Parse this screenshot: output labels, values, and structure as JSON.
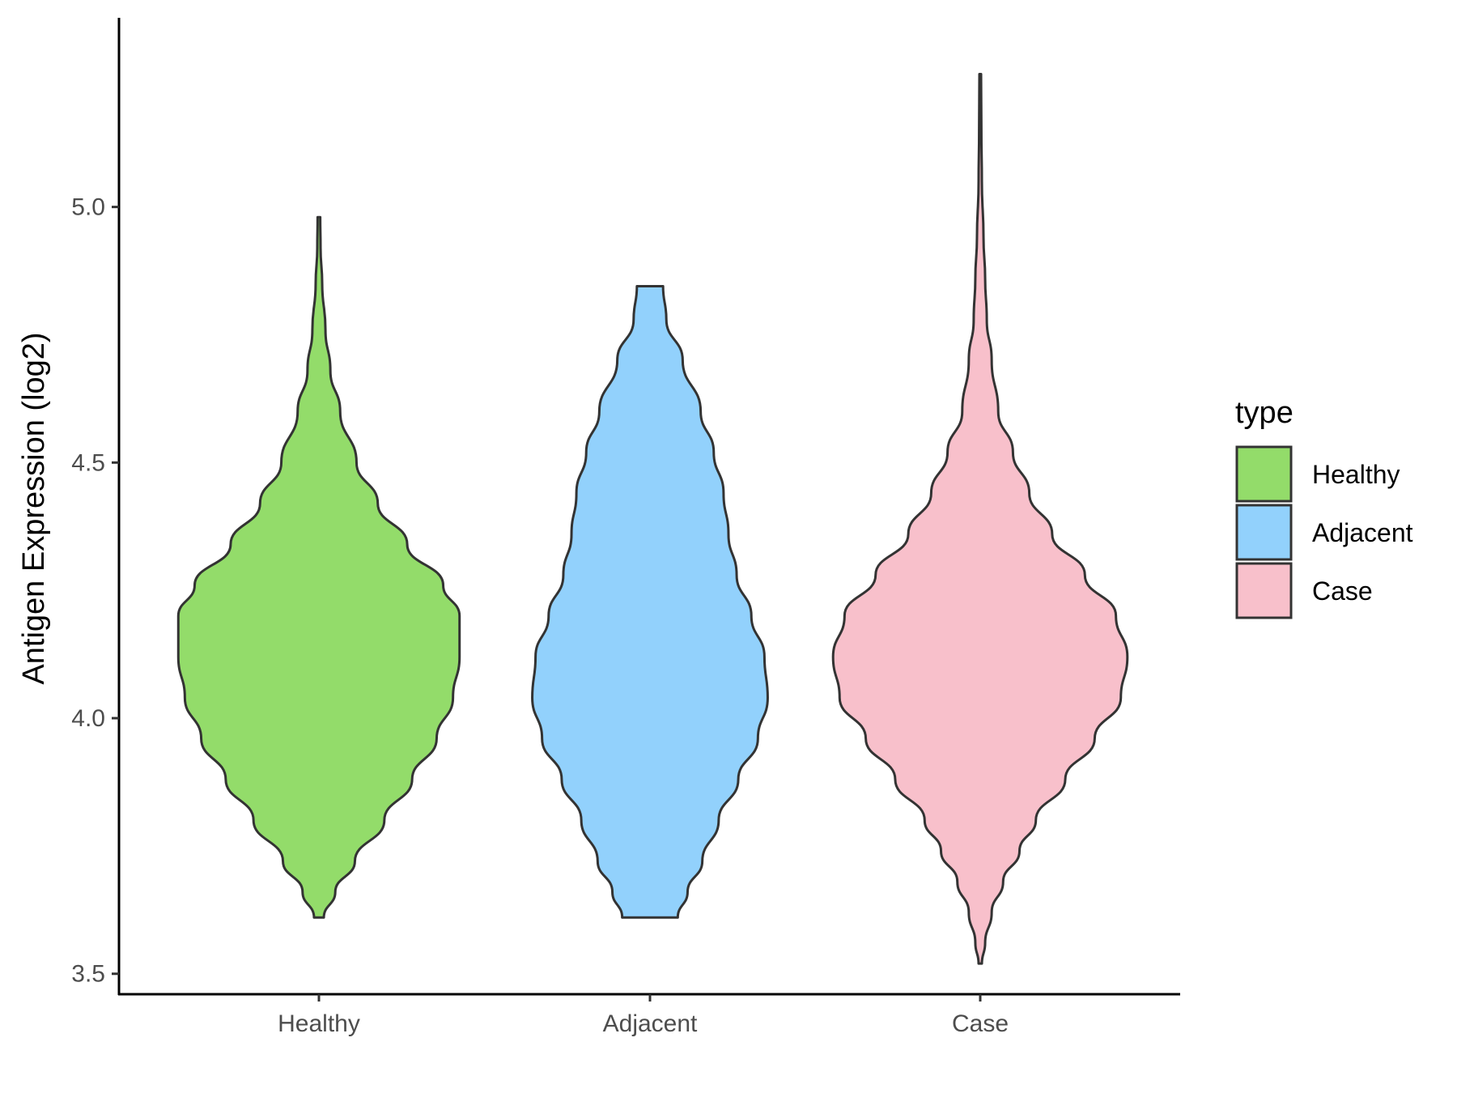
{
  "chart_data": {
    "type": "violin",
    "title": "",
    "xlabel": "",
    "ylabel": "Antigen Expression (log2)",
    "ylim": [
      3.46,
      5.37
    ],
    "yticks": [
      3.5,
      4.0,
      4.5,
      5.0
    ],
    "ytick_labels": [
      "3.5",
      "4.0",
      "4.5",
      "5.0"
    ],
    "categories": [
      "Healthy",
      "Adjacent",
      "Case"
    ],
    "grid": false,
    "legend": {
      "title": "type",
      "placement": "right",
      "entries": [
        "Healthy",
        "Adjacent",
        "Case"
      ]
    },
    "series": [
      {
        "name": "Healthy",
        "color": "#93DC6A",
        "min": 3.61,
        "max": 4.98,
        "profile": [
          [
            3.61,
            0.03
          ],
          [
            3.66,
            0.1
          ],
          [
            3.72,
            0.22
          ],
          [
            3.8,
            0.4
          ],
          [
            3.88,
            0.57
          ],
          [
            3.96,
            0.72
          ],
          [
            4.04,
            0.82
          ],
          [
            4.12,
            0.86
          ],
          [
            4.2,
            0.86
          ],
          [
            4.26,
            0.76
          ],
          [
            4.34,
            0.54
          ],
          [
            4.42,
            0.36
          ],
          [
            4.5,
            0.23
          ],
          [
            4.6,
            0.13
          ],
          [
            4.68,
            0.07
          ],
          [
            4.76,
            0.04
          ],
          [
            4.85,
            0.02
          ],
          [
            4.92,
            0.01
          ],
          [
            4.98,
            0.008
          ]
        ]
      },
      {
        "name": "Adjacent",
        "color": "#92D1FC",
        "min": 3.61,
        "max": 4.845,
        "profile": [
          [
            3.61,
            0.17
          ],
          [
            3.66,
            0.23
          ],
          [
            3.72,
            0.32
          ],
          [
            3.8,
            0.42
          ],
          [
            3.88,
            0.54
          ],
          [
            3.96,
            0.66
          ],
          [
            4.04,
            0.72
          ],
          [
            4.12,
            0.7
          ],
          [
            4.2,
            0.62
          ],
          [
            4.28,
            0.53
          ],
          [
            4.36,
            0.48
          ],
          [
            4.44,
            0.45
          ],
          [
            4.52,
            0.39
          ],
          [
            4.6,
            0.31
          ],
          [
            4.7,
            0.2
          ],
          [
            4.78,
            0.1
          ],
          [
            4.845,
            0.08
          ]
        ]
      },
      {
        "name": "Case",
        "color": "#F8C0CB",
        "min": 3.52,
        "max": 5.26,
        "profile": [
          [
            3.52,
            0.01
          ],
          [
            3.56,
            0.03
          ],
          [
            3.62,
            0.07
          ],
          [
            3.68,
            0.14
          ],
          [
            3.74,
            0.24
          ],
          [
            3.8,
            0.34
          ],
          [
            3.88,
            0.52
          ],
          [
            3.96,
            0.7
          ],
          [
            4.04,
            0.86
          ],
          [
            4.12,
            0.9
          ],
          [
            4.2,
            0.83
          ],
          [
            4.28,
            0.64
          ],
          [
            4.36,
            0.44
          ],
          [
            4.44,
            0.3
          ],
          [
            4.52,
            0.2
          ],
          [
            4.6,
            0.11
          ],
          [
            4.7,
            0.07
          ],
          [
            4.78,
            0.04
          ],
          [
            4.86,
            0.03
          ],
          [
            4.94,
            0.02
          ],
          [
            5.05,
            0.01
          ],
          [
            5.15,
            0.007
          ],
          [
            5.26,
            0.005
          ]
        ]
      }
    ]
  }
}
